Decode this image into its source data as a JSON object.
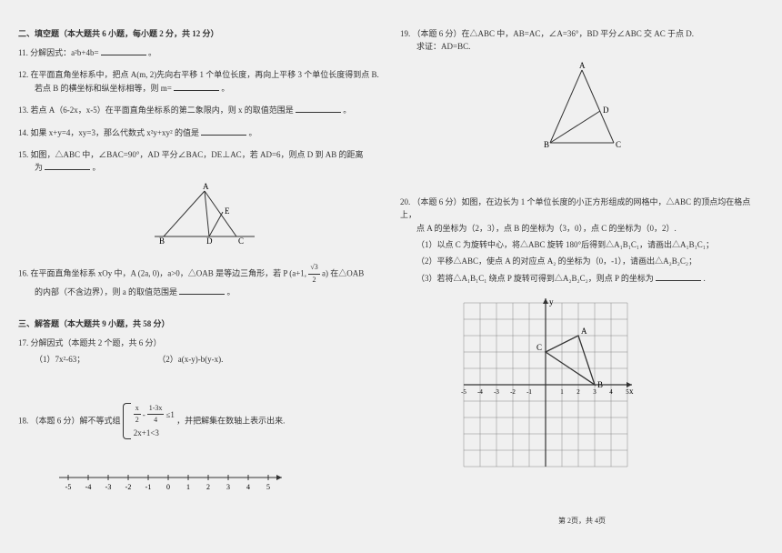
{
  "section2": {
    "title": "二、填空题（本大题共 6 小题，每小题 2 分，共 12 分）",
    "q11": {
      "num": "11.",
      "text": "分解因式：a²b+4b=",
      "suffix": "。"
    },
    "q12": {
      "num": "12.",
      "line1": "在平面直角坐标系中，把点 A(m, 2)先向右平移 1 个单位长度，再向上平移 3 个单位长度得到点 B.",
      "line2": "若点 B 的横坐标和纵坐标相等，则 m=",
      "suffix": "。"
    },
    "q13": {
      "num": "13.",
      "text": "若点 A（6-2x，x-5）在平面直角坐标系的第二象限内，则 x 的取值范围是",
      "suffix": "。"
    },
    "q14": {
      "num": "14.",
      "text": "如果 x+y=4，xy=3，那么代数式 x²y+xy² 的值是",
      "suffix": "。"
    },
    "q15": {
      "num": "15.",
      "line1": "如图，△ABC 中，∠BAC=90°，AD 平分∠BAC，DE⊥AC，若 AD=6，则点 D 到 AB 的距离",
      "line2": "为",
      "suffix": "。"
    },
    "q16": {
      "num": "16.",
      "line1_a": "在平面直角坐标系 xOy 中，A (2a, 0)，a>0，△OAB 是等边三角形，若 P (a+1, ",
      "line1_b": "a) 在△OAB",
      "line2": "的内部（不含边界），则 a 的取值范围是",
      "suffix": "。",
      "frac_top": "√3",
      "frac_bot": "2"
    }
  },
  "section3": {
    "title": "三、解答题（本大题共 9 小题，共 58 分）",
    "q17": {
      "num": "17.",
      "text": "分解因式（本题共 2 个题，共 6 分）",
      "sub1": "（1）7x²-63；",
      "sub2": "（2）a(x-y)-b(y-x)."
    },
    "q18": {
      "num": "18.",
      "prefix": "（本题 6 分）解不等式组",
      "sys_top_a": "x",
      "sys_top_b": "1-3x",
      "sys_top_c": "≤1",
      "sys_top_d1": "2",
      "sys_top_d2": "4",
      "sys_bot": "2x+1<3",
      "suffix": "，并把解集在数轴上表示出来."
    }
  },
  "right": {
    "q19": {
      "num": "19.",
      "line1": "（本题 6 分）在△ABC 中，AB=AC，∠A=36°，BD 平分∠ABC 交 AC 于点 D.",
      "line2": "求证：AD=BC."
    },
    "q20": {
      "num": "20.",
      "line1": "（本题 6 分）如图，在边长为 1 个单位长度的小正方形组成的网格中，△ABC 的顶点均在格点上，",
      "line2": "点 A 的坐标为（2，3），点 B 的坐标为（3，0），点 C 的坐标为（0，2）.",
      "sub1": "（1）以点 C 为旋转中心，将△ABC 旋转 180°后得到△A₁B₁C₁，请画出△A₁B₁C₁；",
      "sub2": "（2）平移△ABC，使点 A 的对应点 A₂ 的坐标为（0，-1），请画出△A₂B₂C₂；",
      "sub3": "（3）若将△A₁B₁C₁ 绕点 P 旋转可得到△A₂B₂C₂，则点 P 的坐标为",
      "suffix": "."
    }
  },
  "footer": "第 2页，共 4页",
  "numberline": {
    "ticks": [
      "-5",
      "-4",
      "-3",
      "-2",
      "-1",
      "0",
      "1",
      "2",
      "3",
      "4",
      "5"
    ]
  },
  "triangle15": {
    "labels": {
      "A": "A",
      "B": "B",
      "C": "C",
      "D": "D",
      "E": "E"
    }
  },
  "triangle19": {
    "labels": {
      "A": "A",
      "B": "B",
      "C": "C",
      "D": "D"
    }
  },
  "grid": {
    "xticks": [
      "-5",
      "-4",
      "-3",
      "-2",
      "-1",
      "",
      "1",
      "2",
      "3",
      "4",
      "5"
    ],
    "pointA": "A",
    "pointB": "B",
    "pointC": "C",
    "yLabel": "y",
    "xLabel": "x"
  },
  "colors": {
    "bg": "#f0f0f0",
    "text": "#333333",
    "line": "#333333",
    "grid": "#888888"
  }
}
